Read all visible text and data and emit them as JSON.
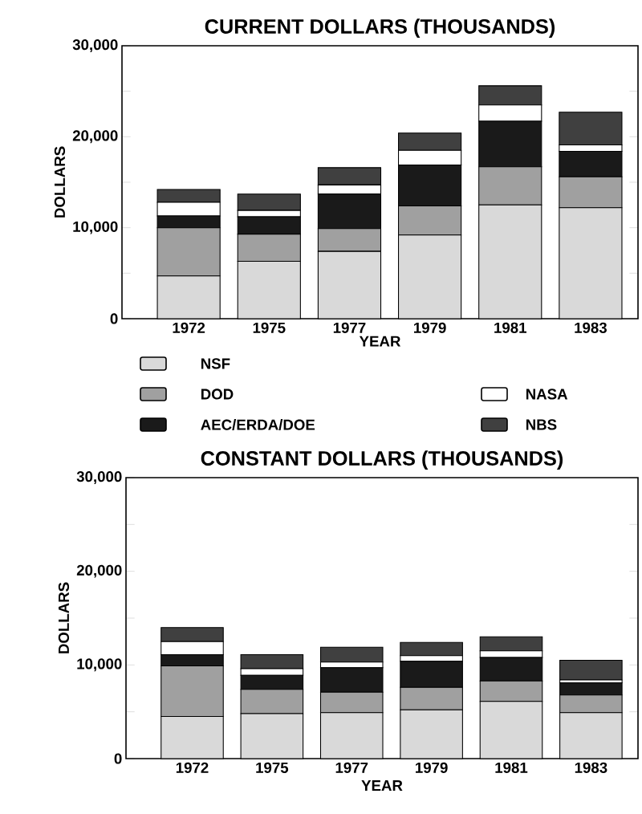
{
  "chart_data": [
    {
      "type": "bar",
      "stacked": true,
      "title": "CURRENT DOLLARS (THOUSANDS)",
      "xlabel": "YEAR",
      "ylabel": "DOLLARS",
      "legend": "bottom",
      "categories": [
        "1972",
        "1975",
        "1977",
        "1979",
        "1981",
        "1983"
      ],
      "ylim": [
        0,
        30000
      ],
      "yticks": [
        0,
        {
          "value": 5000,
          "label": null
        },
        {
          "value": 10000,
          "label": "10,000"
        },
        {
          "value": 15000,
          "label": null
        },
        {
          "value": 20000,
          "label": "20,000"
        },
        {
          "value": 25000,
          "label": null
        },
        {
          "value": 30000,
          "label": "30,000"
        }
      ],
      "series": [
        {
          "name": "NSF",
          "color": "#d9d9d9",
          "values": [
            4700,
            6300,
            7400,
            9200,
            12500,
            12200
          ]
        },
        {
          "name": "DOD",
          "color": "#a0a0a0",
          "values": [
            5300,
            3000,
            2500,
            3200,
            4200,
            3400
          ]
        },
        {
          "name": "AEC/ERDA/DOE",
          "color": "#1a1a1a",
          "values": [
            1300,
            1900,
            3800,
            4500,
            5000,
            2800
          ]
        },
        {
          "name": "NASA",
          "color": "#ffffff",
          "values": [
            1500,
            700,
            1000,
            1600,
            1800,
            700
          ]
        },
        {
          "name": "NBS",
          "color": "#404040",
          "values": [
            1400,
            1800,
            1900,
            1900,
            2100,
            3600
          ]
        }
      ]
    },
    {
      "type": "bar",
      "stacked": true,
      "title": "CONSTANT DOLLARS (THOUSANDS)",
      "xlabel": "YEAR",
      "ylabel": "DOLLARS",
      "categories": [
        "1972",
        "1975",
        "1977",
        "1979",
        "1981",
        "1983"
      ],
      "ylim": [
        0,
        30000
      ],
      "yticks": [
        0,
        {
          "value": 5000,
          "label": null
        },
        {
          "value": 10000,
          "label": "10,000"
        },
        {
          "value": 15000,
          "label": null
        },
        {
          "value": 20000,
          "label": "20,000"
        },
        {
          "value": 25000,
          "label": null
        },
        {
          "value": 30000,
          "label": "30,000"
        }
      ],
      "series": [
        {
          "color": "#d9d9d9",
          "values": [
            4500,
            4800,
            4900,
            5200,
            6100,
            4900
          ]
        },
        {
          "color": "#a0a0a0",
          "values": [
            5400,
            2600,
            2200,
            2400,
            2200,
            1900
          ]
        },
        {
          "color": "#1a1a1a",
          "values": [
            1200,
            1500,
            2600,
            2800,
            2500,
            1300
          ]
        },
        {
          "color": "#ffffff",
          "values": [
            1400,
            700,
            600,
            600,
            700,
            300
          ]
        },
        {
          "color": "#404040",
          "values": [
            1500,
            1500,
            1600,
            1400,
            1500,
            2100
          ]
        }
      ]
    }
  ]
}
